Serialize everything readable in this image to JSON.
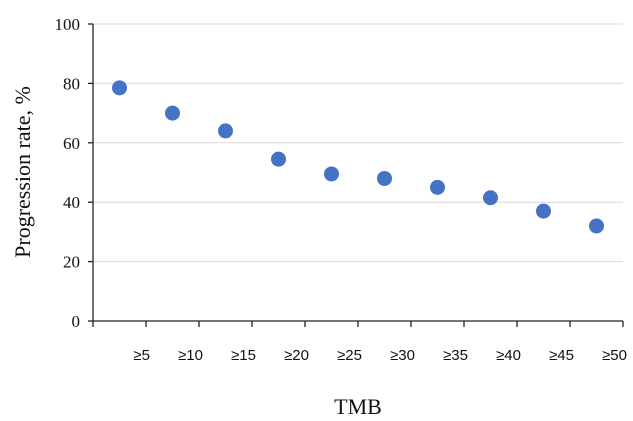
{
  "chart_data": {
    "type": "scatter",
    "categories": [
      "≥5",
      "≥10",
      "≥15",
      "≥20",
      "≥25",
      "≥30",
      "≥35",
      "≥40",
      "≥45",
      "≥50"
    ],
    "values": [
      78.5,
      70,
      64,
      54.5,
      49.5,
      48,
      45,
      41.5,
      37,
      32
    ],
    "xlabel": "TMB",
    "ylabel": "Progression rate, %",
    "ylim": [
      0,
      100
    ],
    "yticks": [
      "0",
      "20",
      "40",
      "60",
      "80",
      "100"
    ],
    "grid": "horizontal",
    "legend": "none",
    "colors": {
      "point": "#4472c4",
      "grid": "#d9d9d9",
      "axis": "#222222"
    }
  }
}
